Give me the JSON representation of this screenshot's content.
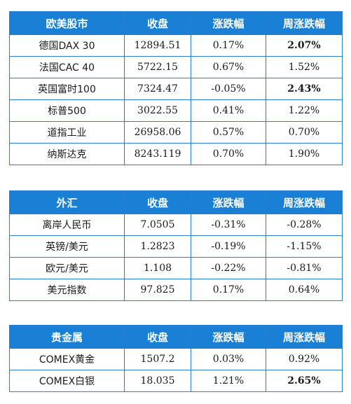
{
  "colors": {
    "header_bg": "#1a80d6",
    "border": "#2a7ccd",
    "up": "#e8242c",
    "down": "#12a54a"
  },
  "tables": [
    {
      "id": "eu",
      "headers": [
        "欧美股市",
        "收盘",
        "涨跌幅",
        "周涨跌幅"
      ],
      "rows": [
        {
          "name": "德国DAX 30",
          "close": "12894.51",
          "chg": "0.17%",
          "chg_dir": "up",
          "wchg": "2.07%",
          "wchg_dir": "up",
          "wchg_bold": true
        },
        {
          "name": "法国CAC 40",
          "close": "5722.15",
          "chg": "0.67%",
          "chg_dir": "up",
          "wchg": "1.52%",
          "wchg_dir": "up",
          "wchg_bold": false
        },
        {
          "name": "英国富时100",
          "close": "7324.47",
          "chg": "-0.05%",
          "chg_dir": "down",
          "wchg": "2.43%",
          "wchg_dir": "up",
          "wchg_bold": true
        },
        {
          "name": "标普500",
          "close": "3022.55",
          "chg": "0.41%",
          "chg_dir": "up",
          "wchg": "1.22%",
          "wchg_dir": "up",
          "wchg_bold": false
        },
        {
          "name": "道指工业",
          "close": "26958.06",
          "chg": "0.57%",
          "chg_dir": "up",
          "wchg": "0.70%",
          "wchg_dir": "up",
          "wchg_bold": false
        },
        {
          "name": "纳斯达克",
          "close": "8243.119",
          "chg": "0.70%",
          "chg_dir": "up",
          "wchg": "1.90%",
          "wchg_dir": "up",
          "wchg_bold": false
        }
      ]
    },
    {
      "id": "fx",
      "headers": [
        "外汇",
        "收盘",
        "涨跌幅",
        "周涨跌幅"
      ],
      "rows": [
        {
          "name": "离岸人民币",
          "close": "7.0505",
          "chg": "-0.31%",
          "chg_dir": "down",
          "wchg": "-0.28%",
          "wchg_dir": "down",
          "wchg_bold": false
        },
        {
          "name": "英镑/美元",
          "close": "1.2823",
          "chg": "-0.19%",
          "chg_dir": "down",
          "wchg": "-1.15%",
          "wchg_dir": "down",
          "wchg_bold": false
        },
        {
          "name": "欧元/美元",
          "close": "1.108",
          "chg": "-0.22%",
          "chg_dir": "down",
          "wchg": "-0.81%",
          "wchg_dir": "down",
          "wchg_bold": false
        },
        {
          "name": "美元指数",
          "close": "97.825",
          "chg": "0.17%",
          "chg_dir": "up",
          "wchg": "0.64%",
          "wchg_dir": "up",
          "wchg_bold": false
        }
      ]
    },
    {
      "id": "pm",
      "headers": [
        "贵金属",
        "收盘",
        "涨跌幅",
        "周涨跌幅"
      ],
      "rows": [
        {
          "name": "COMEX黄金",
          "close": "1507.2",
          "chg": "0.03%",
          "chg_dir": "up",
          "wchg": "0.92%",
          "wchg_dir": "up",
          "wchg_bold": false
        },
        {
          "name": "COMEX白银",
          "close": "18.035",
          "chg": "1.21%",
          "chg_dir": "up",
          "wchg": "2.65%",
          "wchg_dir": "up",
          "wchg_bold": true
        }
      ]
    }
  ]
}
